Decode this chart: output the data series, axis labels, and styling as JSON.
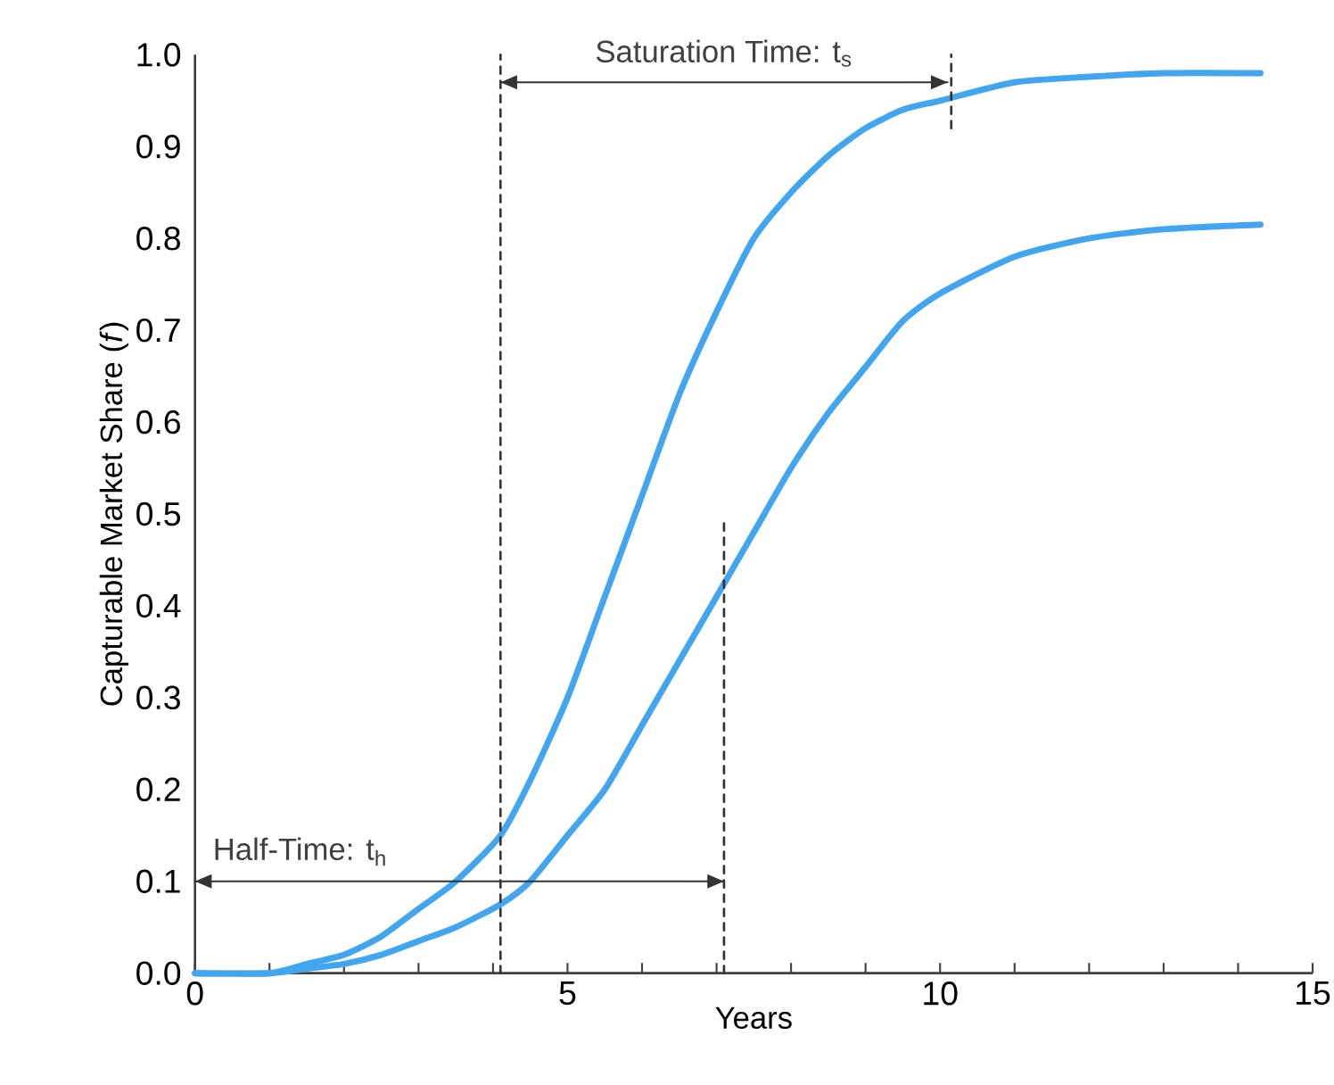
{
  "chart_data": {
    "type": "line",
    "xlabel": "Years",
    "ylabel": "Capturable Market Share (*f*)",
    "xlim": [
      0,
      15
    ],
    "ylim": [
      0,
      1.0
    ],
    "xticks": [
      0,
      {
        "value": 1,
        "label": null
      },
      {
        "value": 2,
        "label": null
      },
      {
        "value": 3,
        "label": null
      },
      {
        "value": 4,
        "label": null
      },
      5,
      {
        "value": 6,
        "label": null
      },
      {
        "value": 7,
        "label": null
      },
      {
        "value": 8,
        "label": null
      },
      {
        "value": 9,
        "label": null
      },
      10,
      {
        "value": 11,
        "label": null
      },
      {
        "value": 12,
        "label": null
      },
      {
        "value": 13,
        "label": null
      },
      {
        "value": 14,
        "label": null
      },
      15
    ],
    "yticks": [
      {
        "value": 0,
        "label": "0.0"
      },
      0.1,
      0.2,
      0.3,
      0.4,
      0.5,
      0.6,
      0.7,
      0.8,
      0.9,
      {
        "value": 1.0,
        "label": "1.0"
      }
    ],
    "grid": false,
    "marker": "none",
    "series": [
      {
        "color": "#42a5f0",
        "x": [
          0,
          1,
          1.5,
          2,
          2.5,
          3,
          3.5,
          4.1,
          4.5,
          5,
          5.5,
          6,
          6.5,
          7,
          7.5,
          8,
          8.5,
          9,
          9.5,
          10,
          11,
          12,
          13,
          14.3
        ],
        "values": [
          0.0,
          0.0,
          0.01,
          0.02,
          0.04,
          0.07,
          0.1,
          0.15,
          0.21,
          0.3,
          0.41,
          0.52,
          0.63,
          0.72,
          0.8,
          0.85,
          0.89,
          0.92,
          0.94,
          0.95,
          0.97,
          0.976,
          0.98,
          0.98
        ]
      },
      {
        "color": "#42a5f0",
        "x": [
          0,
          1,
          1.5,
          2,
          2.5,
          3,
          3.5,
          4.1,
          4.5,
          5,
          5.5,
          6,
          6.5,
          7,
          7.5,
          8,
          8.5,
          9,
          9.5,
          10,
          11,
          12,
          13,
          14.3
        ],
        "values": [
          0.0,
          0.0,
          0.005,
          0.01,
          0.02,
          0.035,
          0.05,
          0.075,
          0.1,
          0.15,
          0.2,
          0.27,
          0.34,
          0.41,
          0.48,
          0.55,
          0.61,
          0.66,
          0.71,
          0.74,
          0.78,
          0.8,
          0.81,
          0.815
        ]
      },
      {
        "color": "#333333",
        "line_style": "dashed",
        "x": [
          4.1,
          4.1
        ],
        "values": [
          0,
          1.0
        ]
      },
      {
        "color": "#333333",
        "line_style": "dashed",
        "x": [
          7.1,
          7.1
        ],
        "values": [
          0,
          0.49
        ]
      },
      {
        "color": "#333333",
        "line_style": "dashed",
        "x": [
          10.15,
          10.15
        ],
        "values": [
          0.92,
          1.0
        ]
      },
      {
        "color": "#333333",
        "line_style": "solid",
        "x": [
          0,
          7.1
        ],
        "values": [
          0.1,
          0.1
        ]
      },
      {
        "color": "#333333",
        "line_style": "solid",
        "x": [
          4.1,
          10.1
        ],
        "values": [
          0.97,
          0.97
        ]
      }
    ],
    "annotations": [
      "Half-Time: t$_{h}$",
      "Saturation Time: t$_{s}$"
    ]
  }
}
